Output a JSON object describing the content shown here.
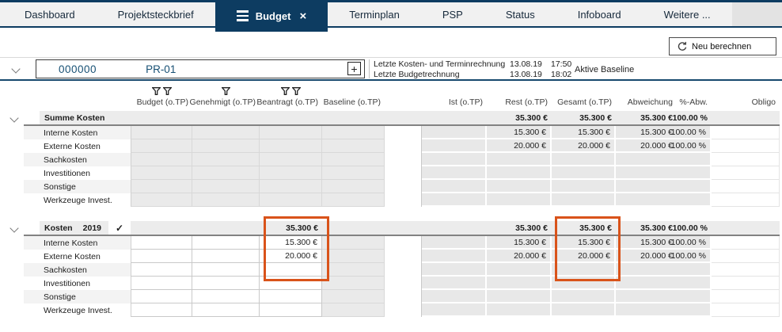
{
  "tabs": [
    {
      "label": "Dashboard",
      "active": false
    },
    {
      "label": "Projektsteckbrief",
      "active": false
    },
    {
      "label": "Budget",
      "active": true
    },
    {
      "label": "Terminplan",
      "active": false
    },
    {
      "label": "PSP",
      "active": false
    },
    {
      "label": "Status",
      "active": false
    },
    {
      "label": "Infoboard",
      "active": false
    },
    {
      "label": "Weitere ...",
      "active": false
    }
  ],
  "toolbar": {
    "recalc_label": "Neu berechnen"
  },
  "project": {
    "id": "000000",
    "code": "PR-01"
  },
  "info": {
    "line1_label": "Letzte Kosten- und Terminrechnung",
    "line1_date": "13.08.19",
    "line1_time": "17:50",
    "line2_label": "Letzte Budgetrechnung",
    "line2_date": "13.08.19",
    "line2_time": "18:02",
    "baseline_label": "Aktive Baseline"
  },
  "icons": {
    "plus": "+",
    "close": "×",
    "check": "✓"
  },
  "colors": {
    "accent_navy": "#0d3c61",
    "highlight_orange": "#d9531a"
  },
  "table": {
    "columns_left": [
      {
        "label": "Budget (o.TP)",
        "filters": 2
      },
      {
        "label": "Genehmigt (o.TP)",
        "filters": 1
      },
      {
        "label": "Beantragt (o.TP)",
        "filters": 2
      },
      {
        "label": "Baseline (o.TP)",
        "filters": 0
      }
    ],
    "columns_right": [
      "Ist (o.TP)",
      "Rest (o.TP)",
      "Gesamt (o.TP)",
      "Abweichung",
      "%-Abw.",
      "Obligo"
    ],
    "sections": [
      {
        "title": "Summe Kosten",
        "year": "",
        "checked": false,
        "style": "summary",
        "header_values": {
          "rest": "35.300 €",
          "gesamt": "35.300 €",
          "abweichung": "35.300 €",
          "pabw": "100.00 %"
        },
        "rows": [
          {
            "label": "Interne Kosten",
            "rest": "15.300 €",
            "gesamt": "15.300 €",
            "abweichung": "15.300 €",
            "pabw": "100.00 %"
          },
          {
            "label": "Externe Kosten",
            "rest": "20.000 €",
            "gesamt": "20.000 €",
            "abweichung": "20.000 €",
            "pabw": "100.00 %"
          },
          {
            "label": "Sachkosten"
          },
          {
            "label": "Investitionen"
          },
          {
            "label": "Sonstige"
          },
          {
            "label": "Werkzeuge Invest."
          }
        ]
      },
      {
        "title": "Kosten",
        "year": "2019",
        "checked": true,
        "style": "editable",
        "header_values": {
          "beantragt": "35.300 €",
          "rest": "35.300 €",
          "gesamt": "35.300 €",
          "abweichung": "35.300 €",
          "pabw": "100.00 %"
        },
        "rows": [
          {
            "label": "Interne Kosten",
            "beantragt": "15.300 €",
            "rest": "15.300 €",
            "gesamt": "15.300 €",
            "abweichung": "15.300 €",
            "pabw": "100.00 %"
          },
          {
            "label": "Externe Kosten",
            "beantragt": "20.000 €",
            "rest": "20.000 €",
            "gesamt": "20.000 €",
            "abweichung": "20.000 €",
            "pabw": "100.00 %"
          },
          {
            "label": "Sachkosten"
          },
          {
            "label": "Investitionen"
          },
          {
            "label": "Sonstige"
          },
          {
            "label": "Werkzeuge Invest."
          }
        ]
      }
    ]
  }
}
